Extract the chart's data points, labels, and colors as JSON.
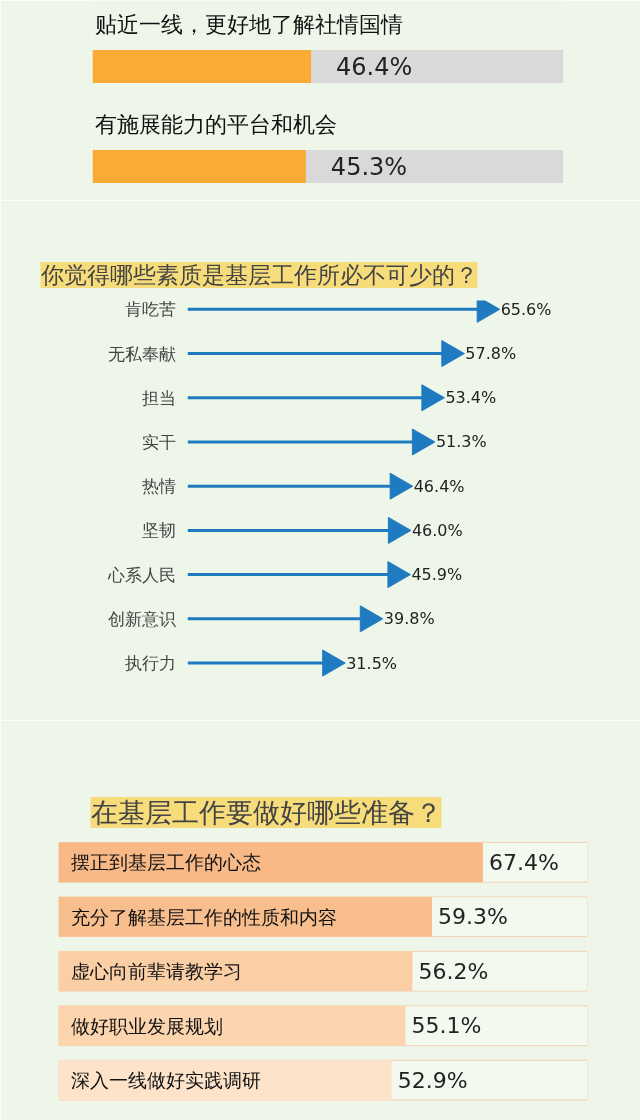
{
  "chart_data": [
    {
      "type": "bar",
      "orientation": "horizontal",
      "categories": [
        "贴近一线，更好地了解社情国情",
        "有施展能力的平台和机会"
      ],
      "values": [
        46.4,
        45.3
      ],
      "color": "#f9ab36",
      "xlim": [
        0,
        100
      ],
      "value_labels": [
        "46.4%",
        "45.3%"
      ],
      "tick_labels": "y"
    },
    {
      "type": "lollipop",
      "marker": "triangle",
      "orientation": "horizontal",
      "title": "你觉得哪些素质是基层工作所必不可少的？",
      "categories": [
        "肯吃苦",
        "无私奉献",
        "担当",
        "实干",
        "热情",
        "坚韧",
        "心系人民",
        "创新意识",
        "执行力"
      ],
      "values": [
        65.6,
        57.8,
        53.4,
        51.3,
        46.4,
        46.0,
        45.9,
        39.8,
        31.5
      ],
      "color": "#1f7bc0",
      "xlim": [
        0,
        100
      ],
      "value_labels": [
        "65.6%",
        "57.8%",
        "53.4%",
        "51.3%",
        "46.4%",
        "46.0%",
        "45.9%",
        "39.8%",
        "31.5%"
      ],
      "tick_labels": "y"
    },
    {
      "type": "bar",
      "orientation": "horizontal",
      "title": "在基层工作要做好哪些准备？",
      "categories": [
        "摆正到基层工作的心态",
        "充分了解基层工作的性质和内容",
        "虚心向前辈请教学习",
        "做好职业发展规划",
        "深入一线做好实践调研"
      ],
      "values": [
        67.4,
        59.3,
        56.2,
        55.1,
        52.9
      ],
      "colors": [
        "#f8b987",
        "#f9be8e",
        "#fbcfa6",
        "#fcd4ae",
        "#fde3ca"
      ],
      "xlim": [
        0,
        84
      ],
      "value_labels": [
        "67.4%",
        "59.3%",
        "56.2%",
        "55.1%",
        "52.9%"
      ],
      "tick_labels": "y"
    }
  ]
}
